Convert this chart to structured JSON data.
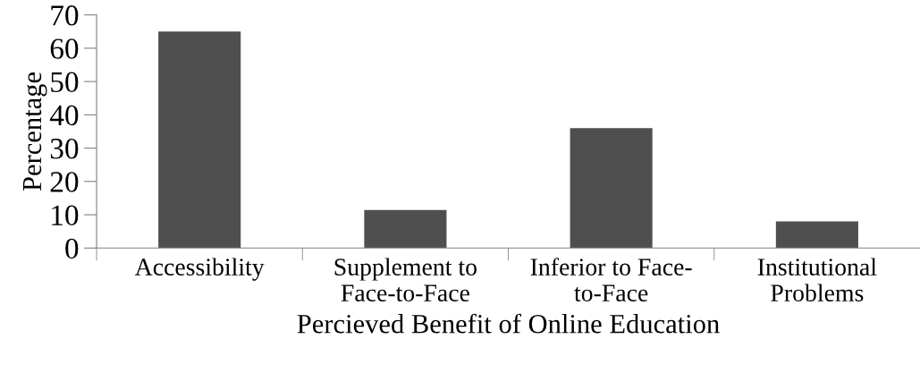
{
  "chart_data": {
    "type": "bar",
    "xlabel": "Percieved Benefit of Online Education",
    "ylabel": "Percentage",
    "categories": [
      "Accessibility",
      "Supplement to\nFace-to-Face",
      "Inferior to Face-\nto-Face",
      "Institutional\nProblems"
    ],
    "values": [
      65,
      11.4,
      36,
      8
    ],
    "color": "#4f4f4f",
    "ylim": [
      0,
      70
    ],
    "yticks": [
      0,
      10,
      20,
      30,
      40,
      50,
      60,
      70
    ],
    "grid": false,
    "legend": false
  }
}
